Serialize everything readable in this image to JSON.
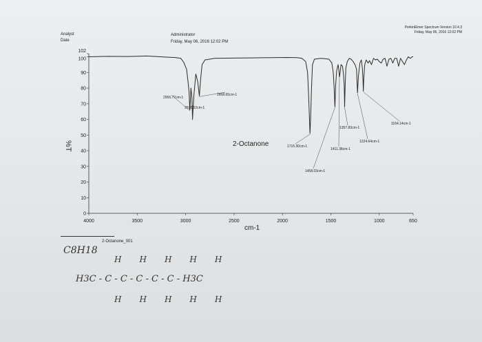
{
  "header": {
    "analyst_label": "Analyst",
    "date_label": "Date",
    "user": "Administrator",
    "datetime": "Friday, May 06, 2016 12:02 PM",
    "software": "PerkinElmer Spectrum Version 10.4.3",
    "software_datetime": "Friday, May 06, 2016 12:02 PM"
  },
  "chart_data": {
    "type": "line",
    "title": "",
    "xlabel": "cm-1",
    "ylabel": "%T",
    "sample_name": "2-Octanone",
    "xlim": [
      4000,
      650
    ],
    "ylim": [
      0,
      102
    ],
    "x_ticks": [
      "4000",
      "3500",
      "3000",
      "2500",
      "2000",
      "1500",
      "1000",
      "650"
    ],
    "y_ticks": [
      "0",
      "10",
      "20",
      "30",
      "40",
      "50",
      "60",
      "70",
      "80",
      "90",
      "100",
      "102"
    ],
    "series": [
      {
        "x": [
          4000,
          3800,
          3600,
          3400,
          3200,
          3100,
          3050,
          3020,
          2990,
          2975,
          2965,
          2956.77,
          2945,
          2935,
          2928.52,
          2915,
          2895,
          2875,
          2858.65,
          2845,
          2830,
          2800,
          2700,
          2500,
          2300,
          2100,
          1950,
          1850,
          1800,
          1760,
          1740,
          1730,
          1722,
          1715.3,
          1708,
          1700,
          1690,
          1670,
          1600,
          1520,
          1490,
          1475,
          1465,
          1458.03,
          1450,
          1440,
          1425,
          1418,
          1411.38,
          1404,
          1395,
          1380,
          1370,
          1362,
          1357.83,
          1352,
          1345,
          1330,
          1310,
          1290,
          1270,
          1250,
          1235,
          1224.64,
          1215,
          1200,
          1185,
          1175,
          1168,
          1164.14,
          1160,
          1150,
          1135,
          1115,
          1100,
          1080,
          1060,
          1040,
          1020,
          1000,
          980,
          960,
          940,
          920,
          900,
          880,
          860,
          840,
          820,
          800,
          780,
          760,
          740,
          720,
          700,
          680,
          660,
          650
        ],
        "y": [
          100,
          100.3,
          100.2,
          100.5,
          99.8,
          99.5,
          99,
          96.5,
          92,
          84,
          78,
          66,
          80,
          74,
          60,
          75,
          89,
          84,
          75,
          86,
          95,
          98,
          99,
          99.2,
          99.3,
          99.5,
          99.6,
          99.5,
          99,
          97,
          90,
          75,
          62,
          51,
          62,
          80,
          95,
          98.5,
          99,
          98.5,
          96,
          90,
          79,
          68,
          82,
          91,
          95,
          92,
          87,
          90,
          95,
          94,
          89,
          82,
          68,
          82,
          93,
          97,
          99,
          98.5,
          97,
          95,
          92,
          77,
          88,
          96,
          98,
          93,
          85,
          78,
          86,
          95,
          98,
          96,
          97.5,
          95,
          99,
          98,
          98.5,
          97,
          96,
          98.5,
          99,
          94,
          98.5,
          99,
          96,
          99,
          99,
          94,
          99,
          97,
          95,
          98,
          100,
          99,
          100,
          100
        ]
      }
    ],
    "peak_labels": [
      {
        "x": 2956.77,
        "label": "2956.77cm-1"
      },
      {
        "x": 2928.52,
        "label": "2928.52cm-1"
      },
      {
        "x": 2858.65,
        "label": "2858.65cm-1"
      },
      {
        "x": 1715.3,
        "label": "1715.30cm-1"
      },
      {
        "x": 1458.03,
        "label": "1458.03cm-1"
      },
      {
        "x": 1411.38,
        "label": "1411.38cm-1"
      },
      {
        "x": 1357.83,
        "label": "1357.83cm-1"
      },
      {
        "x": 1224.64,
        "label": "1224.64cm-1"
      },
      {
        "x": 1164.14,
        "label": "1164.14cm-1"
      }
    ],
    "grid": false,
    "line_color": "#2a2a2a"
  },
  "footer": {
    "file_name": "2-Octanone_001"
  },
  "handwriting": {
    "formula": "C8H18",
    "top_row": [
      "H",
      "H",
      "H",
      "H",
      "H"
    ],
    "middle": "H3C - C - C - C - C - C - H3C",
    "bottom_row": [
      "H",
      "H",
      "H",
      "H",
      "H"
    ]
  }
}
